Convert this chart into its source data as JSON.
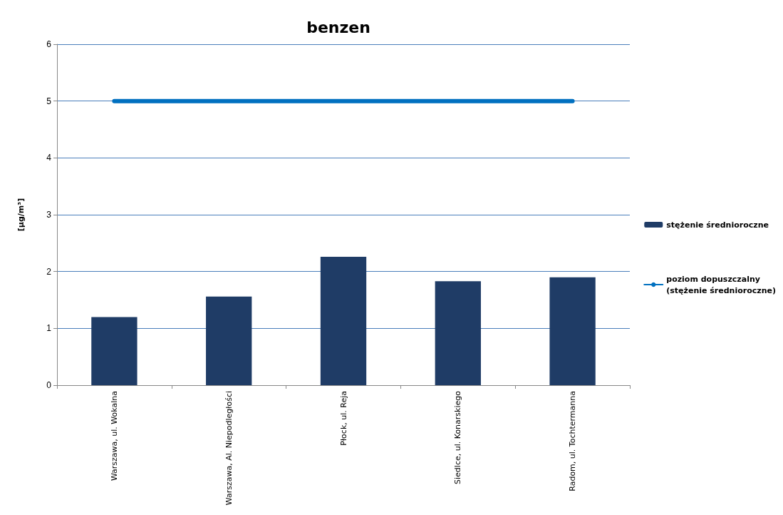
{
  "chart_data": {
    "type": "bar",
    "title": "benzen",
    "ylabel": "[µg/m³]",
    "categories": [
      "Warszawa, ul. Wokalna",
      "Warszawa, Al. Niepodległości",
      "Płock, ul. Reja",
      "Siedlce, ul. Konarskiego",
      "Radom, ul. Tochtermanna"
    ],
    "series": [
      {
        "name": "stężenie średnioroczne",
        "color": "#1f3c66",
        "values": [
          1.2,
          1.56,
          2.26,
          1.83,
          1.9
        ]
      },
      {
        "name": "poziom dopuszczalny\n(stężenie średnioroczne)",
        "type": "line",
        "color": "#0070c0",
        "marker": "none",
        "values": [
          5,
          5,
          5,
          5,
          5
        ]
      }
    ],
    "ylim": [
      0,
      6
    ],
    "yticks": [
      0,
      1,
      2,
      3,
      4,
      5,
      6
    ],
    "grid": "y",
    "legend": "right"
  }
}
